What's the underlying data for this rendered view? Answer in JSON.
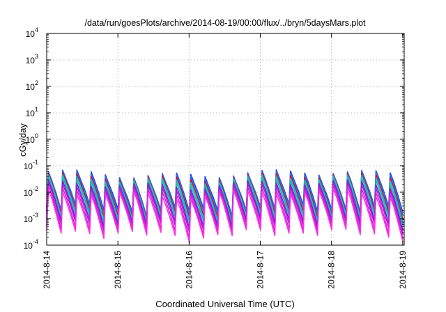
{
  "chart_data": {
    "type": "line",
    "title": "/data/run/goesPlots/archive/2014-08-19/00:00/flux/../bryn/5daysMars.plot",
    "xlabel": "Coordinated Universal Time (UTC)",
    "ylabel": "cGy/day",
    "yscale": "log",
    "ylim": [
      0.0001,
      10000
    ],
    "xlim": [
      "2014-08-14",
      "2014-08-19 00:30"
    ],
    "grid": true,
    "x_ticks": [
      "2014-8-14",
      "2014-8-15",
      "2014-8-16",
      "2014-8-17",
      "2014-8-18",
      "2014-8-19"
    ],
    "y_ticks": [
      {
        "base": "10",
        "exp": "-4"
      },
      {
        "base": "10",
        "exp": "-3"
      },
      {
        "base": "10",
        "exp": "-2"
      },
      {
        "base": "10",
        "exp": "-1"
      },
      {
        "base": "10",
        "exp": "0"
      },
      {
        "base": "10",
        "exp": "1"
      },
      {
        "base": "10",
        "exp": "2"
      },
      {
        "base": "10",
        "exp": "3"
      },
      {
        "base": "10",
        "exp": "4"
      }
    ],
    "series": [
      {
        "color": "#1f3fff",
        "peak": 0.05,
        "trough": 0.0025
      },
      {
        "color": "#2a6fe8",
        "peak": 0.045,
        "trough": 0.0021
      },
      {
        "color": "#d0102a",
        "peak": 0.038,
        "trough": 0.0016
      },
      {
        "color": "#1fb8c8",
        "peak": 0.032,
        "trough": 0.0013
      },
      {
        "color": "#19c0b0",
        "peak": 0.026,
        "trough": 0.0011
      },
      {
        "color": "#7a22d0",
        "peak": 0.02,
        "trough": 0.0008
      },
      {
        "color": "#a41ee0",
        "peak": 0.016,
        "trough": 0.0006
      },
      {
        "color": "#e21cd6",
        "peak": 0.012,
        "trough": 0.0004
      },
      {
        "color": "#ff30e8",
        "peak": 0.009,
        "trough": 0.0003
      }
    ],
    "cycles_per_day": 5,
    "days": 5
  }
}
